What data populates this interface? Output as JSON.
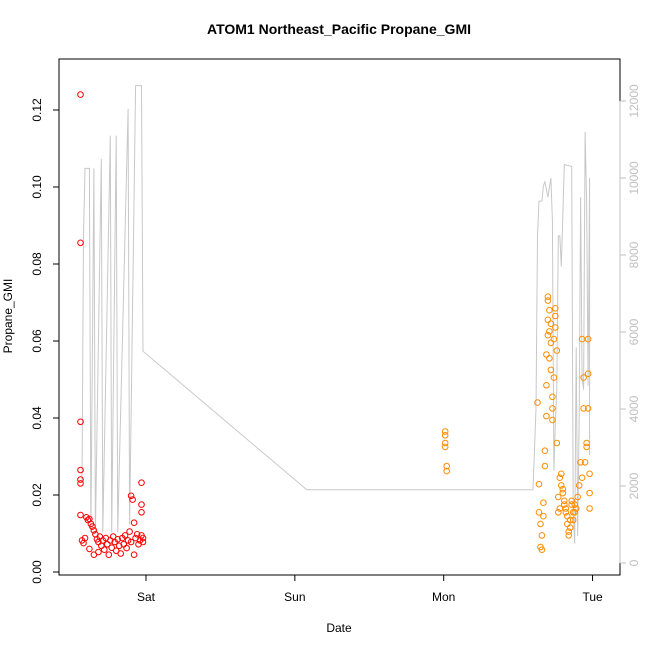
{
  "chart_data": {
    "type": "scatter",
    "title": "ATOM1 Northeast_Pacific Propane_GMI",
    "xlabel": "Date",
    "ylabel": "Propane_GMI",
    "x_ticks": [
      "Sat",
      "Sun",
      "Mon",
      "Tue"
    ],
    "x_tick_positions_days": [
      1,
      2,
      3,
      4
    ],
    "xlim_days": [
      0.55,
      4.05
    ],
    "ylim": [
      0,
      0.13
    ],
    "y_ticks": [
      "0.00",
      "0.02",
      "0.04",
      "0.06",
      "0.08",
      "0.10",
      "0.12"
    ],
    "y2lim": [
      0,
      13000
    ],
    "y2_ticks": [
      "0",
      "2000",
      "4000",
      "6000",
      "8000",
      "10000",
      "12000"
    ],
    "grid": false,
    "colors": {
      "series_red": "#ff0000",
      "series_orange": "#ff8c00",
      "altitude_line": "#c8c8c8",
      "right_axis": "#c0c0c0",
      "axis": "#000000"
    },
    "series": [
      {
        "color": "#ff0000",
        "points": [
          [
            0.56,
            0.124
          ],
          [
            0.56,
            0.0855
          ],
          [
            0.56,
            0.039
          ],
          [
            0.56,
            0.0265
          ],
          [
            0.56,
            0.024
          ],
          [
            0.56,
            0.023
          ],
          [
            0.56,
            0.0148
          ],
          [
            0.57,
            0.0082
          ],
          [
            0.58,
            0.0075
          ],
          [
            0.59,
            0.0088
          ],
          [
            0.6,
            0.0142
          ],
          [
            0.61,
            0.0135
          ],
          [
            0.62,
            0.0138
          ],
          [
            0.62,
            0.006
          ],
          [
            0.63,
            0.0125
          ],
          [
            0.64,
            0.0118
          ],
          [
            0.65,
            0.0108
          ],
          [
            0.65,
            0.0045
          ],
          [
            0.66,
            0.0098
          ],
          [
            0.67,
            0.0085
          ],
          [
            0.68,
            0.0078
          ],
          [
            0.68,
            0.0052
          ],
          [
            0.69,
            0.0092
          ],
          [
            0.7,
            0.0068
          ],
          [
            0.71,
            0.0082
          ],
          [
            0.72,
            0.0058
          ],
          [
            0.73,
            0.0088
          ],
          [
            0.74,
            0.0072
          ],
          [
            0.75,
            0.0045
          ],
          [
            0.76,
            0.0082
          ],
          [
            0.77,
            0.0063
          ],
          [
            0.78,
            0.0092
          ],
          [
            0.79,
            0.0078
          ],
          [
            0.8,
            0.0055
          ],
          [
            0.81,
            0.0085
          ],
          [
            0.82,
            0.0068
          ],
          [
            0.83,
            0.0048
          ],
          [
            0.84,
            0.0088
          ],
          [
            0.85,
            0.0072
          ],
          [
            0.86,
            0.0095
          ],
          [
            0.87,
            0.0062
          ],
          [
            0.88,
            0.0082
          ],
          [
            0.89,
            0.0105
          ],
          [
            0.9,
            0.0078
          ],
          [
            0.9,
            0.0198
          ],
          [
            0.91,
            0.0188
          ],
          [
            0.92,
            0.0128
          ],
          [
            0.92,
            0.0045
          ],
          [
            0.93,
            0.0088
          ],
          [
            0.94,
            0.0098
          ],
          [
            0.95,
            0.0072
          ],
          [
            0.96,
            0.0082
          ],
          [
            0.97,
            0.0095
          ],
          [
            0.97,
            0.0232
          ],
          [
            0.97,
            0.0175
          ],
          [
            0.97,
            0.0155
          ],
          [
            0.98,
            0.0078
          ],
          [
            0.98,
            0.0088
          ]
        ]
      },
      {
        "color": "#ff8c00",
        "points": [
          [
            3.01,
            0.0365
          ],
          [
            3.01,
            0.0355
          ],
          [
            3.01,
            0.0335
          ],
          [
            3.01,
            0.0325
          ],
          [
            3.02,
            0.0275
          ],
          [
            3.02,
            0.0262
          ],
          [
            3.63,
            0.044
          ],
          [
            3.64,
            0.0228
          ],
          [
            3.64,
            0.0155
          ],
          [
            3.65,
            0.0125
          ],
          [
            3.65,
            0.0065
          ],
          [
            3.66,
            0.0058
          ],
          [
            3.66,
            0.0095
          ],
          [
            3.67,
            0.0145
          ],
          [
            3.67,
            0.018
          ],
          [
            3.68,
            0.0275
          ],
          [
            3.68,
            0.0315
          ],
          [
            3.69,
            0.0405
          ],
          [
            3.69,
            0.0485
          ],
          [
            3.69,
            0.0565
          ],
          [
            3.7,
            0.0615
          ],
          [
            3.7,
            0.0655
          ],
          [
            3.7,
            0.0715
          ],
          [
            3.7,
            0.0705
          ],
          [
            3.71,
            0.068
          ],
          [
            3.71,
            0.0625
          ],
          [
            3.71,
            0.0555
          ],
          [
            3.72,
            0.0595
          ],
          [
            3.72,
            0.0645
          ],
          [
            3.72,
            0.0525
          ],
          [
            3.73,
            0.0425
          ],
          [
            3.73,
            0.0395
          ],
          [
            3.73,
            0.0455
          ],
          [
            3.74,
            0.0505
          ],
          [
            3.74,
            0.0605
          ],
          [
            3.75,
            0.0665
          ],
          [
            3.75,
            0.0685
          ],
          [
            3.75,
            0.0635
          ],
          [
            3.76,
            0.0575
          ],
          [
            3.76,
            0.0335
          ],
          [
            3.77,
            0.0195
          ],
          [
            3.77,
            0.0155
          ],
          [
            3.78,
            0.0165
          ],
          [
            3.78,
            0.0245
          ],
          [
            3.79,
            0.0255
          ],
          [
            3.79,
            0.0225
          ],
          [
            3.8,
            0.0215
          ],
          [
            3.8,
            0.0205
          ],
          [
            3.81,
            0.0185
          ],
          [
            3.81,
            0.0175
          ],
          [
            3.82,
            0.0165
          ],
          [
            3.82,
            0.0155
          ],
          [
            3.83,
            0.0145
          ],
          [
            3.83,
            0.0125
          ],
          [
            3.84,
            0.0105
          ],
          [
            3.84,
            0.0095
          ],
          [
            3.85,
            0.0115
          ],
          [
            3.85,
            0.0135
          ],
          [
            3.86,
            0.0175
          ],
          [
            3.86,
            0.0185
          ],
          [
            3.87,
            0.0155
          ],
          [
            3.87,
            0.0135
          ],
          [
            3.88,
            0.0175
          ],
          [
            3.88,
            0.0155
          ],
          [
            3.89,
            0.0165
          ],
          [
            3.9,
            0.0195
          ],
          [
            3.91,
            0.0225
          ],
          [
            3.92,
            0.0285
          ],
          [
            3.93,
            0.0245
          ],
          [
            3.93,
            0.0605
          ],
          [
            3.94,
            0.0505
          ],
          [
            3.94,
            0.0425
          ],
          [
            3.95,
            0.0285
          ],
          [
            3.96,
            0.0335
          ],
          [
            3.96,
            0.0325
          ],
          [
            3.97,
            0.0515
          ],
          [
            3.97,
            0.0605
          ],
          [
            3.97,
            0.0425
          ],
          [
            3.98,
            0.0255
          ],
          [
            3.98,
            0.0205
          ],
          [
            3.98,
            0.0165
          ]
        ]
      }
    ],
    "altitude_line": [
      [
        0.57,
        2100
      ],
      [
        0.58,
        8500
      ],
      [
        0.59,
        10250
      ],
      [
        0.62,
        10250
      ],
      [
        0.63,
        800
      ],
      [
        0.65,
        10250
      ],
      [
        0.66,
        800
      ],
      [
        0.7,
        10500
      ],
      [
        0.71,
        800
      ],
      [
        0.76,
        11100
      ],
      [
        0.77,
        800
      ],
      [
        0.8,
        11100
      ],
      [
        0.81,
        800
      ],
      [
        0.88,
        11800
      ],
      [
        0.89,
        1000
      ],
      [
        0.93,
        12400
      ],
      [
        0.97,
        12400
      ],
      [
        0.98,
        5500
      ],
      [
        2.08,
        1900
      ],
      [
        3.6,
        1900
      ],
      [
        3.62,
        4000
      ],
      [
        3.63,
        8500
      ],
      [
        3.64,
        9400
      ],
      [
        3.66,
        9400
      ],
      [
        3.67,
        9800
      ],
      [
        3.68,
        9900
      ],
      [
        3.7,
        9500
      ],
      [
        3.72,
        10000
      ],
      [
        3.73,
        8900
      ],
      [
        3.74,
        2400
      ],
      [
        3.75,
        3600
      ],
      [
        3.76,
        4500
      ],
      [
        3.77,
        8500
      ],
      [
        3.78,
        8500
      ],
      [
        3.79,
        7700
      ],
      [
        3.8,
        9000
      ],
      [
        3.81,
        10350
      ],
      [
        3.86,
        10300
      ],
      [
        3.87,
        1400
      ],
      [
        3.88,
        500
      ],
      [
        3.89,
        5600
      ],
      [
        3.9,
        700
      ],
      [
        3.91,
        3800
      ],
      [
        3.92,
        9500
      ],
      [
        3.93,
        4800
      ],
      [
        3.94,
        4500
      ],
      [
        3.95,
        11200
      ],
      [
        3.96,
        9400
      ],
      [
        3.97,
        4600
      ],
      [
        3.98,
        10000
      ],
      [
        3.98,
        2800
      ]
    ]
  }
}
